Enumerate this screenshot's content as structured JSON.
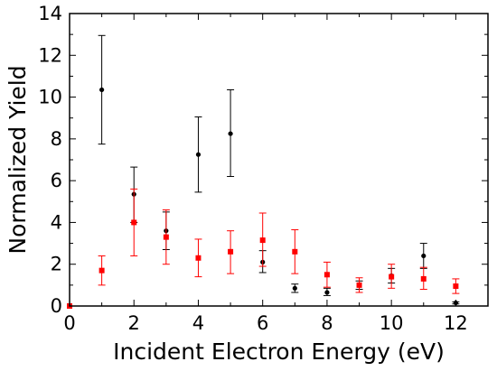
{
  "chart_data": {
    "type": "scatter",
    "title": "",
    "xlabel": "Incident Electron Energy (eV)",
    "ylabel": "Normalized Yield",
    "xlim": [
      0,
      13
    ],
    "ylim": [
      0,
      14
    ],
    "xticks": [
      0,
      2,
      4,
      6,
      8,
      10,
      12
    ],
    "yticks": [
      0,
      2,
      4,
      6,
      8,
      10,
      12,
      14
    ],
    "grid": false,
    "legend": "none",
    "series": [
      {
        "color": "#000000",
        "marker": "circle",
        "points": [
          {
            "x": 1,
            "y": 10.35,
            "yerr_low": 7.75,
            "yerr_high": 12.95
          },
          {
            "x": 2,
            "y": 5.35,
            "yerr_low": 4.0,
            "yerr_high": 6.65
          },
          {
            "x": 3,
            "y": 3.6,
            "yerr_low": 2.7,
            "yerr_high": 4.5
          },
          {
            "x": 4,
            "y": 7.25,
            "yerr_low": 5.45,
            "yerr_high": 9.05
          },
          {
            "x": 5,
            "y": 8.25,
            "yerr_low": 6.2,
            "yerr_high": 10.35
          },
          {
            "x": 6,
            "y": 2.1,
            "yerr_low": 1.6,
            "yerr_high": 2.65
          },
          {
            "x": 7,
            "y": 0.85,
            "yerr_low": 0.65,
            "yerr_high": 1.05
          },
          {
            "x": 8,
            "y": 0.65,
            "yerr_low": 0.5,
            "yerr_high": 0.85
          },
          {
            "x": 9,
            "y": 1.0,
            "yerr_low": 0.8,
            "yerr_high": 1.2
          },
          {
            "x": 10,
            "y": 1.45,
            "yerr_low": 1.1,
            "yerr_high": 1.8
          },
          {
            "x": 11,
            "y": 2.4,
            "yerr_low": 1.8,
            "yerr_high": 3.0
          },
          {
            "x": 12,
            "y": 0.15,
            "yerr_low": 0.1,
            "yerr_high": 0.2
          }
        ]
      },
      {
        "color": "#ff0000",
        "marker": "square",
        "points": [
          {
            "x": 0,
            "y": 0.0,
            "yerr_low": 0.0,
            "yerr_high": 0.0
          },
          {
            "x": 1,
            "y": 1.7,
            "yerr_low": 1.0,
            "yerr_high": 2.4
          },
          {
            "x": 2,
            "y": 4.0,
            "yerr_low": 2.4,
            "yerr_high": 5.6
          },
          {
            "x": 3,
            "y": 3.3,
            "yerr_low": 2.0,
            "yerr_high": 4.6
          },
          {
            "x": 4,
            "y": 2.3,
            "yerr_low": 1.4,
            "yerr_high": 3.2
          },
          {
            "x": 5,
            "y": 2.6,
            "yerr_low": 1.55,
            "yerr_high": 3.6
          },
          {
            "x": 6,
            "y": 3.15,
            "yerr_low": 1.9,
            "yerr_high": 4.45
          },
          {
            "x": 7,
            "y": 2.6,
            "yerr_low": 1.55,
            "yerr_high": 3.65
          },
          {
            "x": 8,
            "y": 1.5,
            "yerr_low": 0.9,
            "yerr_high": 2.1
          },
          {
            "x": 9,
            "y": 1.0,
            "yerr_low": 0.65,
            "yerr_high": 1.35
          },
          {
            "x": 10,
            "y": 1.4,
            "yerr_low": 0.85,
            "yerr_high": 2.0
          },
          {
            "x": 11,
            "y": 1.3,
            "yerr_low": 0.8,
            "yerr_high": 1.85
          },
          {
            "x": 12,
            "y": 0.95,
            "yerr_low": 0.6,
            "yerr_high": 1.3
          }
        ]
      }
    ]
  }
}
